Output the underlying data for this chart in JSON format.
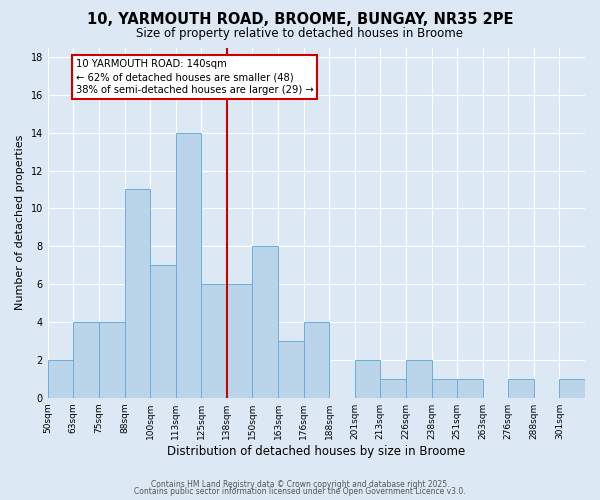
{
  "title": "10, YARMOUTH ROAD, BROOME, BUNGAY, NR35 2PE",
  "subtitle": "Size of property relative to detached houses in Broome",
  "xlabel": "Distribution of detached houses by size in Broome",
  "ylabel": "Number of detached properties",
  "bin_labels": [
    "50sqm",
    "63sqm",
    "75sqm",
    "88sqm",
    "100sqm",
    "113sqm",
    "125sqm",
    "138sqm",
    "150sqm",
    "163sqm",
    "176sqm",
    "188sqm",
    "201sqm",
    "213sqm",
    "226sqm",
    "238sqm",
    "251sqm",
    "263sqm",
    "276sqm",
    "288sqm",
    "301sqm"
  ],
  "counts": [
    2,
    4,
    4,
    11,
    7,
    14,
    6,
    6,
    8,
    3,
    4,
    0,
    2,
    1,
    2,
    1,
    1,
    0,
    1,
    0,
    1
  ],
  "bar_color": "#bad4ea",
  "bar_edge_color": "#6aaed6",
  "background_color": "#dce9f5",
  "grid_color": "#ffffff",
  "ref_line_index": 7,
  "ref_line_color": "#cc0000",
  "annotation_text": "10 YARMOUTH ROAD: 140sqm\n← 62% of detached houses are smaller (48)\n38% of semi-detached houses are larger (29) →",
  "annotation_box_edge": "#cc0000",
  "yticks": [
    0,
    2,
    4,
    6,
    8,
    10,
    12,
    14,
    16,
    18
  ],
  "ylim": [
    0,
    18.5
  ],
  "footer1": "Contains HM Land Registry data © Crown copyright and database right 2025.",
  "footer2": "Contains public sector information licensed under the Open Government Licence v3.0."
}
